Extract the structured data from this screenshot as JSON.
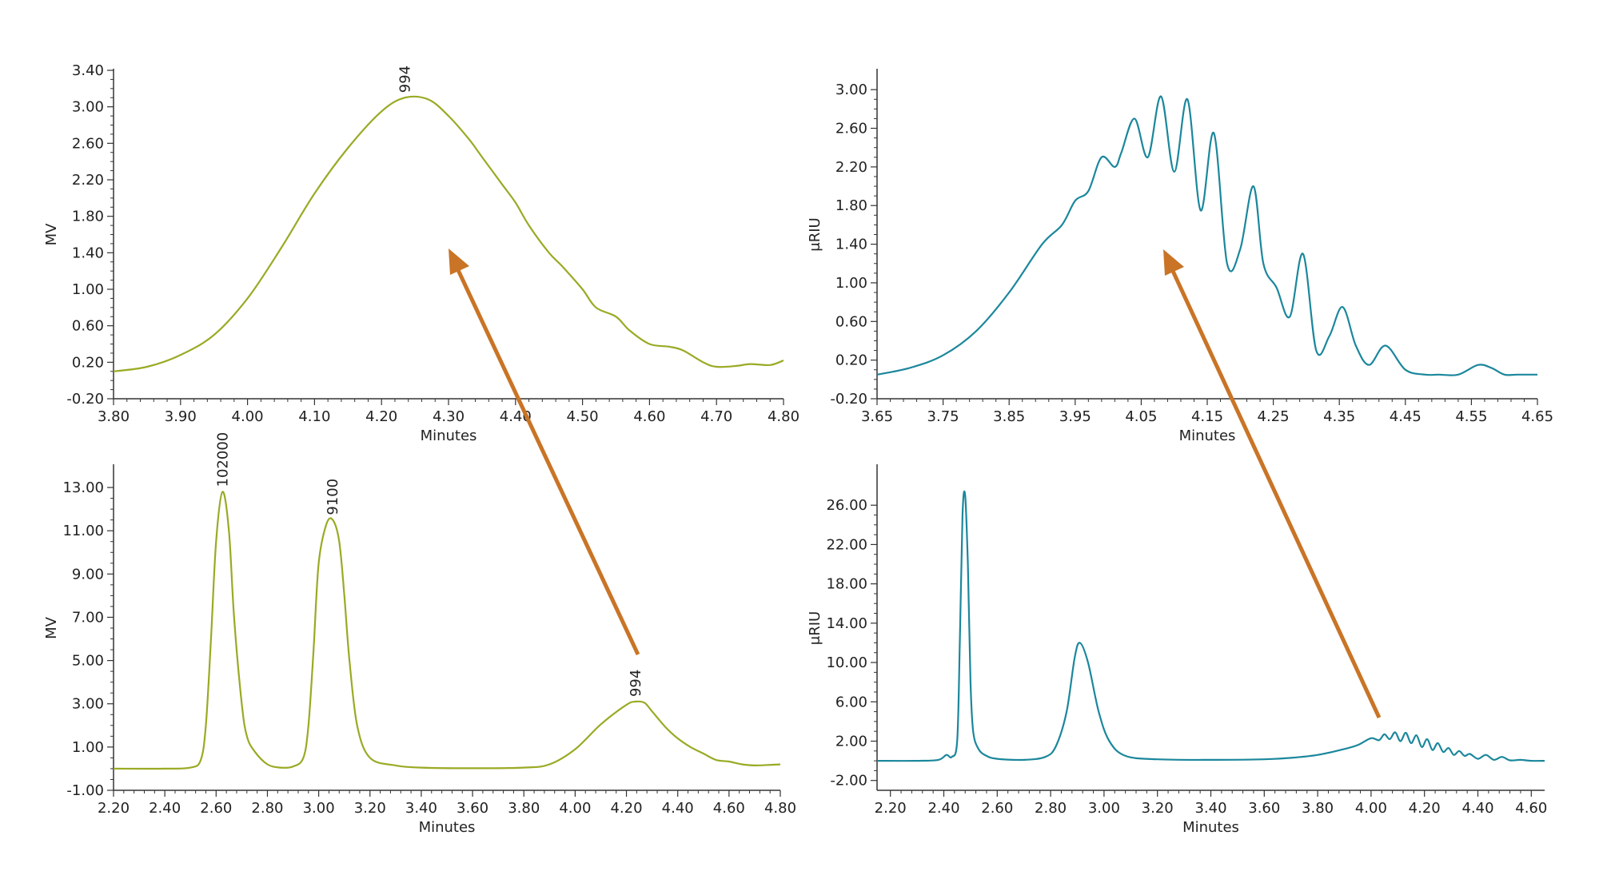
{
  "colors": {
    "green": "#9aaa24",
    "teal": "#1b879c",
    "arrow": "#c97426",
    "axis": "#333333"
  },
  "chart_data": [
    {
      "type": "line",
      "xlabel": "Minutes",
      "ylabel": "MV",
      "xlim": [
        3.8,
        4.8
      ],
      "ylim": [
        -0.2,
        3.4
      ],
      "xticks": [
        "3.80",
        "3.90",
        "4.00",
        "4.10",
        "4.20",
        "4.30",
        "4.40",
        "4.50",
        "4.60",
        "4.70",
        "4.80"
      ],
      "yticks": [
        "-0.20",
        "0.20",
        "0.60",
        "1.00",
        "1.40",
        "1.80",
        "2.20",
        "2.60",
        "3.00",
        "3.40"
      ],
      "color": "green",
      "peak_labels": [
        {
          "text": "994",
          "x": 4.235,
          "y": 3.1
        }
      ],
      "series": [
        {
          "x": [
            3.8,
            3.85,
            3.9,
            3.95,
            4.0,
            4.05,
            4.1,
            4.15,
            4.2,
            4.235,
            4.27,
            4.3,
            4.33,
            4.35,
            4.38,
            4.4,
            4.42,
            4.45,
            4.47,
            4.5,
            4.52,
            4.55,
            4.57,
            4.6,
            4.63,
            4.65,
            4.68,
            4.7,
            4.73,
            4.75,
            4.78,
            4.8
          ],
          "y": [
            0.1,
            0.15,
            0.28,
            0.5,
            0.9,
            1.45,
            2.05,
            2.55,
            2.95,
            3.1,
            3.08,
            2.9,
            2.65,
            2.45,
            2.15,
            1.95,
            1.7,
            1.4,
            1.25,
            1.0,
            0.8,
            0.7,
            0.55,
            0.4,
            0.37,
            0.33,
            0.2,
            0.15,
            0.16,
            0.18,
            0.17,
            0.22
          ]
        }
      ]
    },
    {
      "type": "line",
      "xlabel": "Minutes",
      "ylabel": "μRIU",
      "xlim": [
        3.65,
        4.65
      ],
      "ylim": [
        -0.2,
        3.2
      ],
      "xticks": [
        "3.65",
        "3.75",
        "3.85",
        "3.95",
        "4.05",
        "4.15",
        "4.25",
        "4.35",
        "4.45",
        "4.55",
        "4.65"
      ],
      "yticks": [
        "-0.20",
        "0.20",
        "0.60",
        "1.00",
        "1.40",
        "1.80",
        "2.20",
        "2.60",
        "3.00"
      ],
      "color": "teal",
      "peak_labels": [],
      "series": [
        {
          "x": [
            3.65,
            3.7,
            3.75,
            3.8,
            3.85,
            3.9,
            3.93,
            3.95,
            3.97,
            3.99,
            4.01,
            4.02,
            4.04,
            4.06,
            4.08,
            4.1,
            4.12,
            4.14,
            4.16,
            4.18,
            4.2,
            4.22,
            4.235,
            4.255,
            4.275,
            4.295,
            4.315,
            4.335,
            4.355,
            4.375,
            4.395,
            4.42,
            4.45,
            4.48,
            4.5,
            4.53,
            4.56,
            4.58,
            4.6,
            4.62,
            4.65
          ],
          "y": [
            0.05,
            0.12,
            0.25,
            0.5,
            0.9,
            1.4,
            1.6,
            1.85,
            1.95,
            2.3,
            2.2,
            2.35,
            2.7,
            2.3,
            2.93,
            2.15,
            2.9,
            1.75,
            2.55,
            1.2,
            1.35,
            2.0,
            1.2,
            0.95,
            0.65,
            1.3,
            0.3,
            0.45,
            0.75,
            0.35,
            0.15,
            0.35,
            0.1,
            0.05,
            0.05,
            0.05,
            0.15,
            0.12,
            0.05,
            0.05,
            0.05
          ]
        }
      ]
    },
    {
      "type": "line",
      "xlabel": "Minutes",
      "ylabel": "MV",
      "xlim": [
        2.2,
        4.8
      ],
      "ylim": [
        -1.0,
        14.0
      ],
      "xticks": [
        "2.20",
        "2.40",
        "2.60",
        "2.80",
        "3.00",
        "3.20",
        "3.40",
        "3.60",
        "3.80",
        "4.00",
        "4.20",
        "4.40",
        "4.60",
        "4.80"
      ],
      "yticks": [
        "-1.00",
        "1.00",
        "3.00",
        "5.00",
        "7.00",
        "9.00",
        "11.00",
        "13.00"
      ],
      "color": "green",
      "peak_labels": [
        {
          "text": "102000",
          "x": 2.625,
          "y": 12.8
        },
        {
          "text": "9100",
          "x": 3.055,
          "y": 11.5
        },
        {
          "text": "994",
          "x": 4.235,
          "y": 3.1
        }
      ],
      "series": [
        {
          "x": [
            2.2,
            2.4,
            2.5,
            2.54,
            2.56,
            2.58,
            2.6,
            2.625,
            2.65,
            2.67,
            2.7,
            2.72,
            2.75,
            2.8,
            2.85,
            2.9,
            2.94,
            2.96,
            2.98,
            3.0,
            3.03,
            3.055,
            3.08,
            3.1,
            3.12,
            3.15,
            3.2,
            3.3,
            3.4,
            3.6,
            3.8,
            3.9,
            4.0,
            4.1,
            4.2,
            4.235,
            4.27,
            4.3,
            4.35,
            4.4,
            4.45,
            4.5,
            4.55,
            4.6,
            4.65,
            4.7,
            4.75,
            4.8
          ],
          "y": [
            0.0,
            0.0,
            0.05,
            0.4,
            2.0,
            6.0,
            10.5,
            12.8,
            11.0,
            7.0,
            3.0,
            1.5,
            0.8,
            0.2,
            0.05,
            0.1,
            0.5,
            2.0,
            5.5,
            9.5,
            11.3,
            11.5,
            10.5,
            8.0,
            5.0,
            2.0,
            0.5,
            0.15,
            0.05,
            0.02,
            0.05,
            0.2,
            0.9,
            2.05,
            2.95,
            3.1,
            3.05,
            2.65,
            1.95,
            1.4,
            1.0,
            0.7,
            0.4,
            0.33,
            0.2,
            0.15,
            0.17,
            0.2
          ]
        }
      ]
    },
    {
      "type": "line",
      "xlabel": "Minutes",
      "ylabel": "μRIU",
      "xlim": [
        2.15,
        4.65
      ],
      "ylim": [
        -3.0,
        30.0
      ],
      "xticks": [
        "2.20",
        "2.40",
        "2.60",
        "2.80",
        "3.00",
        "3.20",
        "3.40",
        "3.60",
        "3.80",
        "4.00",
        "4.20",
        "4.40",
        "4.60"
      ],
      "yticks": [
        "-2.00",
        "2.00",
        "6.00",
        "10.00",
        "14.00",
        "18.00",
        "22.00",
        "26.00"
      ],
      "color": "teal",
      "peak_labels": [],
      "series": [
        {
          "x": [
            2.15,
            2.3,
            2.38,
            2.41,
            2.43,
            2.45,
            2.46,
            2.47,
            2.48,
            2.49,
            2.5,
            2.51,
            2.53,
            2.56,
            2.6,
            2.7,
            2.78,
            2.82,
            2.86,
            2.89,
            2.91,
            2.94,
            2.98,
            3.02,
            3.08,
            3.2,
            3.4,
            3.6,
            3.7,
            3.8,
            3.9,
            3.95,
            4.0,
            4.03,
            4.05,
            4.07,
            4.09,
            4.11,
            4.13,
            4.15,
            4.17,
            4.19,
            4.21,
            4.23,
            4.25,
            4.27,
            4.29,
            4.31,
            4.33,
            4.35,
            4.37,
            4.4,
            4.43,
            4.46,
            4.49,
            4.52,
            4.56,
            4.6,
            4.65
          ],
          "y": [
            0.0,
            0.0,
            0.1,
            0.6,
            0.4,
            2.0,
            12.0,
            25.0,
            27.0,
            20.0,
            8.0,
            3.0,
            1.2,
            0.5,
            0.2,
            0.1,
            0.4,
            1.5,
            5.0,
            10.5,
            12.0,
            10.0,
            5.0,
            2.0,
            0.5,
            0.15,
            0.1,
            0.15,
            0.3,
            0.6,
            1.2,
            1.6,
            2.3,
            2.1,
            2.7,
            2.2,
            2.9,
            2.0,
            2.85,
            1.8,
            2.6,
            1.4,
            2.2,
            1.1,
            1.8,
            0.9,
            1.3,
            0.6,
            1.0,
            0.5,
            0.7,
            0.2,
            0.6,
            0.1,
            0.4,
            0.05,
            0.1,
            0.0,
            0.0
          ]
        }
      ]
    }
  ]
}
